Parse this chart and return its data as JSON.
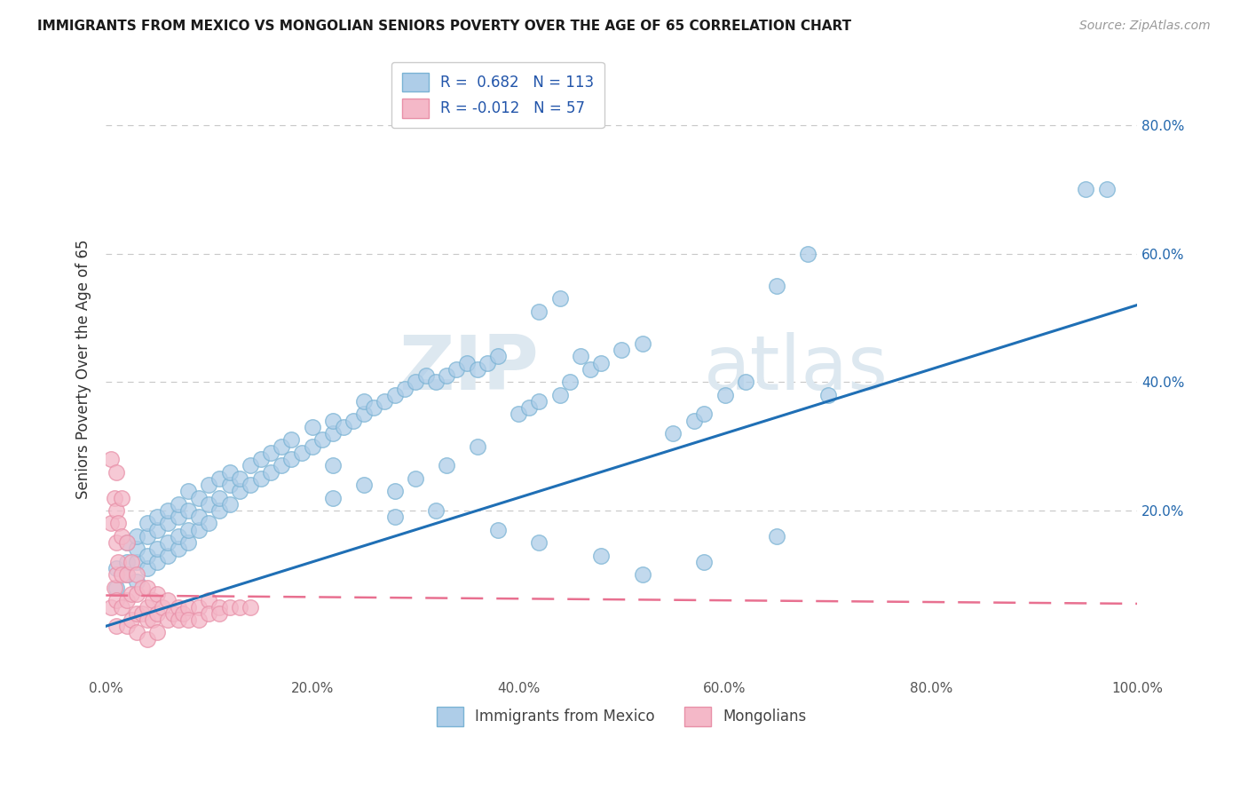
{
  "title": "IMMIGRANTS FROM MEXICO VS MONGOLIAN SENIORS POVERTY OVER THE AGE OF 65 CORRELATION CHART",
  "source": "Source: ZipAtlas.com",
  "ylabel": "Seniors Poverty Over the Age of 65",
  "legend_label1": "Immigrants from Mexico",
  "legend_label2": "Mongolians",
  "R1": 0.682,
  "N1": 113,
  "R2": -0.012,
  "N2": 57,
  "blue_face_color": "#aecde8",
  "blue_edge_color": "#7ab3d4",
  "pink_face_color": "#f4b8c8",
  "pink_edge_color": "#e890a8",
  "blue_line_color": "#1f6fb5",
  "pink_line_color": "#e87090",
  "background_color": "#ffffff",
  "grid_color": "#c8c8c8",
  "yticks": [
    0.0,
    0.2,
    0.4,
    0.6,
    0.8
  ],
  "ytick_labels": [
    "",
    "20.0%",
    "40.0%",
    "60.0%",
    "80.0%"
  ],
  "xlim": [
    0.0,
    1.0
  ],
  "ylim": [
    -0.06,
    0.9
  ],
  "blue_line_x0": 0.0,
  "blue_line_y0": 0.02,
  "blue_line_x1": 1.0,
  "blue_line_y1": 0.52,
  "pink_line_x0": 0.0,
  "pink_line_y0": 0.068,
  "pink_line_x1": 1.0,
  "pink_line_y1": 0.055,
  "blue_x": [
    0.01,
    0.01,
    0.02,
    0.02,
    0.02,
    0.03,
    0.03,
    0.03,
    0.03,
    0.04,
    0.04,
    0.04,
    0.04,
    0.05,
    0.05,
    0.05,
    0.05,
    0.06,
    0.06,
    0.06,
    0.06,
    0.07,
    0.07,
    0.07,
    0.07,
    0.08,
    0.08,
    0.08,
    0.08,
    0.09,
    0.09,
    0.09,
    0.1,
    0.1,
    0.1,
    0.11,
    0.11,
    0.11,
    0.12,
    0.12,
    0.12,
    0.13,
    0.13,
    0.14,
    0.14,
    0.15,
    0.15,
    0.16,
    0.16,
    0.17,
    0.17,
    0.18,
    0.18,
    0.19,
    0.2,
    0.2,
    0.21,
    0.22,
    0.22,
    0.23,
    0.24,
    0.25,
    0.25,
    0.26,
    0.27,
    0.28,
    0.29,
    0.3,
    0.31,
    0.32,
    0.33,
    0.34,
    0.35,
    0.36,
    0.37,
    0.38,
    0.4,
    0.41,
    0.42,
    0.44,
    0.45,
    0.47,
    0.48,
    0.5,
    0.52,
    0.55,
    0.57,
    0.58,
    0.6,
    0.62,
    0.65,
    0.68,
    0.7,
    0.42,
    0.44,
    0.46,
    0.3,
    0.33,
    0.36,
    0.22,
    0.25,
    0.28,
    0.95,
    0.97,
    0.65,
    0.58,
    0.52,
    0.48,
    0.42,
    0.38,
    0.32,
    0.28,
    0.22
  ],
  "blue_y": [
    0.08,
    0.11,
    0.1,
    0.12,
    0.15,
    0.09,
    0.12,
    0.14,
    0.16,
    0.11,
    0.13,
    0.16,
    0.18,
    0.12,
    0.14,
    0.17,
    0.19,
    0.13,
    0.15,
    0.18,
    0.2,
    0.14,
    0.16,
    0.19,
    0.21,
    0.15,
    0.17,
    0.2,
    0.23,
    0.17,
    0.19,
    0.22,
    0.18,
    0.21,
    0.24,
    0.2,
    0.22,
    0.25,
    0.21,
    0.24,
    0.26,
    0.23,
    0.25,
    0.24,
    0.27,
    0.25,
    0.28,
    0.26,
    0.29,
    0.27,
    0.3,
    0.28,
    0.31,
    0.29,
    0.3,
    0.33,
    0.31,
    0.32,
    0.34,
    0.33,
    0.34,
    0.35,
    0.37,
    0.36,
    0.37,
    0.38,
    0.39,
    0.4,
    0.41,
    0.4,
    0.41,
    0.42,
    0.43,
    0.42,
    0.43,
    0.44,
    0.35,
    0.36,
    0.37,
    0.38,
    0.4,
    0.42,
    0.43,
    0.45,
    0.46,
    0.32,
    0.34,
    0.35,
    0.38,
    0.4,
    0.55,
    0.6,
    0.38,
    0.51,
    0.53,
    0.44,
    0.25,
    0.27,
    0.3,
    0.22,
    0.24,
    0.19,
    0.7,
    0.7,
    0.16,
    0.12,
    0.1,
    0.13,
    0.15,
    0.17,
    0.2,
    0.23,
    0.27
  ],
  "pink_x": [
    0.005,
    0.005,
    0.005,
    0.008,
    0.008,
    0.01,
    0.01,
    0.01,
    0.01,
    0.01,
    0.01,
    0.012,
    0.012,
    0.015,
    0.015,
    0.015,
    0.015,
    0.02,
    0.02,
    0.02,
    0.02,
    0.025,
    0.025,
    0.025,
    0.03,
    0.03,
    0.03,
    0.03,
    0.035,
    0.035,
    0.04,
    0.04,
    0.04,
    0.04,
    0.045,
    0.045,
    0.05,
    0.05,
    0.05,
    0.055,
    0.06,
    0.06,
    0.065,
    0.07,
    0.07,
    0.075,
    0.08,
    0.08,
    0.09,
    0.09,
    0.1,
    0.1,
    0.11,
    0.11,
    0.12,
    0.13,
    0.14
  ],
  "pink_y": [
    0.28,
    0.18,
    0.05,
    0.22,
    0.08,
    0.26,
    0.2,
    0.15,
    0.1,
    0.06,
    0.02,
    0.18,
    0.12,
    0.22,
    0.16,
    0.1,
    0.05,
    0.15,
    0.1,
    0.06,
    0.02,
    0.12,
    0.07,
    0.03,
    0.1,
    0.07,
    0.04,
    0.01,
    0.08,
    0.04,
    0.08,
    0.05,
    0.03,
    0.0,
    0.06,
    0.03,
    0.07,
    0.04,
    0.01,
    0.05,
    0.06,
    0.03,
    0.04,
    0.05,
    0.03,
    0.04,
    0.05,
    0.03,
    0.05,
    0.03,
    0.06,
    0.04,
    0.05,
    0.04,
    0.05,
    0.05,
    0.05
  ]
}
